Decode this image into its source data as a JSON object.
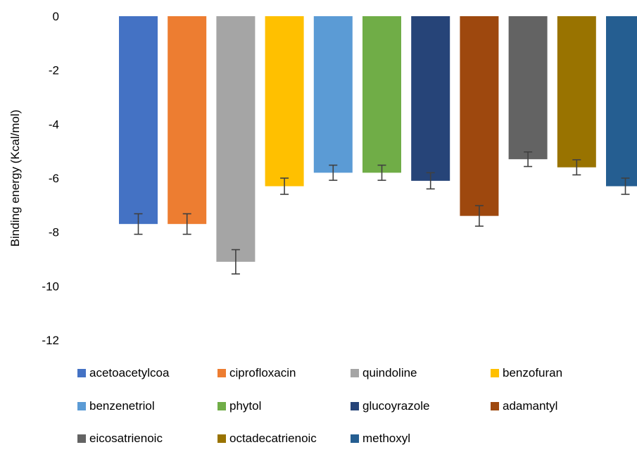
{
  "chart_data": {
    "type": "bar",
    "title": "",
    "xlabel": "",
    "ylabel": "Binding energy (Kcal/mol)",
    "ylim": [
      -12,
      0
    ],
    "yticks": [
      0,
      -2,
      -4,
      -6,
      -8,
      -10,
      -12
    ],
    "grid": false,
    "legend_position": "bottom",
    "categories": [
      "acetoacetylcoa",
      "ciprofloxacin",
      "quindoline",
      "benzofuran",
      "benzenetriol",
      "phytol",
      "glucoyrazole",
      "adamantyl",
      "eicosatrienoic",
      "octadecatrienoic",
      "methoxyl"
    ],
    "values": [
      -7.7,
      -7.7,
      -9.1,
      -6.3,
      -5.8,
      -5.8,
      -6.1,
      -7.4,
      -5.3,
      -5.6,
      -6.3
    ],
    "errors": [
      0.38,
      0.38,
      0.45,
      0.3,
      0.28,
      0.28,
      0.3,
      0.38,
      0.27,
      0.28,
      0.3
    ],
    "colors": [
      "#4472C4",
      "#ED7D31",
      "#A5A5A5",
      "#FFC000",
      "#5B9BD5",
      "#70AD47",
      "#264478",
      "#9E480E",
      "#636363",
      "#997300",
      "#255E91"
    ],
    "error_bar_color": "#404040"
  }
}
